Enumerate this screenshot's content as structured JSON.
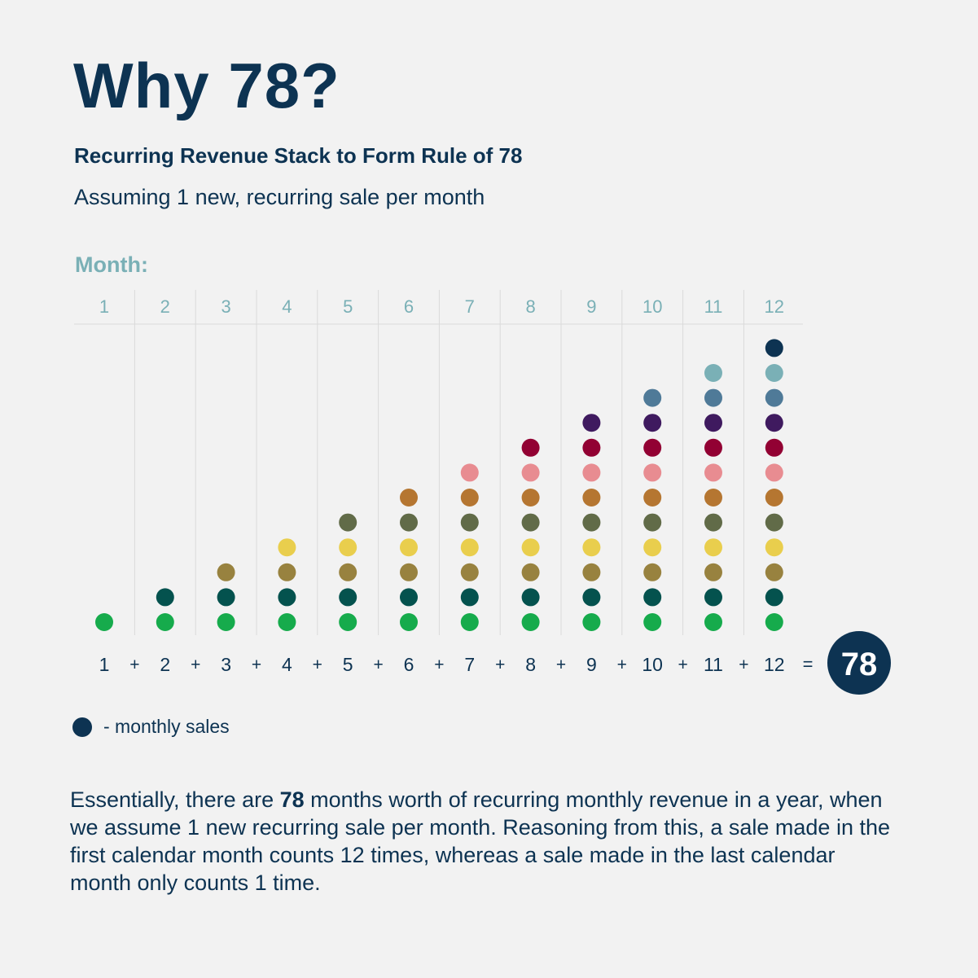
{
  "header": {
    "title": "Why 78?",
    "subtitle": "Recurring Revenue Stack to Form Rule of 78",
    "assumption": "Assuming 1 new, recurring sale per month"
  },
  "chart_data": {
    "type": "stacked-dot",
    "axis_label": "Month:",
    "categories": [
      "1",
      "2",
      "3",
      "4",
      "5",
      "6",
      "7",
      "8",
      "9",
      "10",
      "11",
      "12"
    ],
    "values": [
      1,
      2,
      3,
      4,
      5,
      6,
      7,
      8,
      9,
      10,
      11,
      12
    ],
    "layer_colors": [
      "#16ab4c",
      "#04524e",
      "#98823f",
      "#e9ce4d",
      "#616b48",
      "#b57631",
      "#e88c91",
      "#920133",
      "#3f1a5f",
      "#4f7a98",
      "#7ab0b6",
      "#0d3352"
    ],
    "equation_operator": "+",
    "equals_sign": "=",
    "total": "78"
  },
  "legend": {
    "label": "- monthly sales",
    "color": "#0d3352"
  },
  "paragraph": {
    "before": "Essentially, there are ",
    "bold": "78",
    "after": " months worth of recurring monthly revenue in a year, when we assume 1 new recurring sale per month. Reasoning from this, a sale made in the first calendar month counts 12 times, whereas a sale made in the last calendar month only counts 1 time."
  },
  "colors": {
    "navy": "#0d3352",
    "teal_label": "#7ab0b6",
    "grid": "#dadada"
  }
}
